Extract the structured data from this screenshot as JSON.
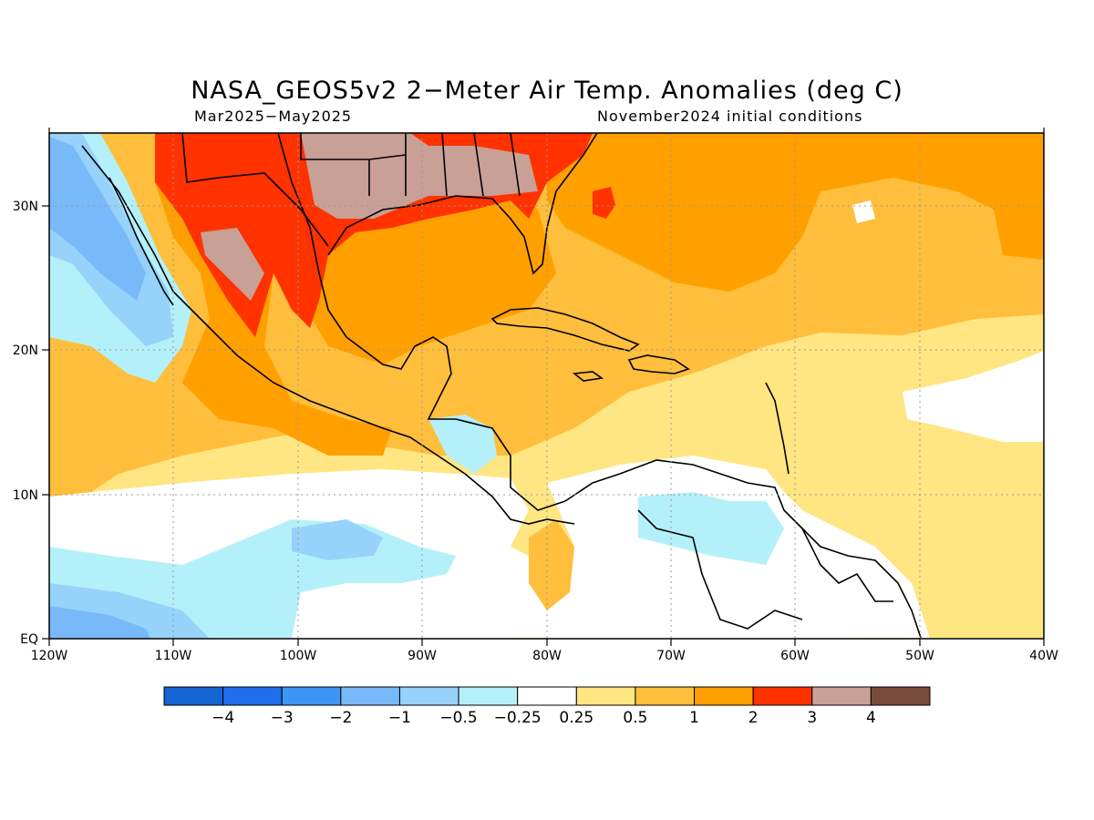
{
  "title": "NASA_GEOS5v2 2−Meter Air Temp. Anomalies (deg C)",
  "subtitle_left": "Mar2025−May2025",
  "subtitle_right": "November2024 initial conditions",
  "map": {
    "lon_range": [
      -120,
      -40
    ],
    "lat_range": [
      0,
      35
    ],
    "x_ticks": [
      "120W",
      "110W",
      "100W",
      "90W",
      "80W",
      "70W",
      "60W",
      "50W",
      "40W"
    ],
    "y_ticks": [
      "EQ",
      "10N",
      "20N",
      "30N"
    ],
    "gridlines": "dotted"
  },
  "colorbar": {
    "labels": [
      "−4",
      "−3",
      "−2",
      "−1",
      "−0.5",
      "−0.25",
      "0.25",
      "0.5",
      "1",
      "2",
      "3",
      "4"
    ],
    "colors": [
      "#1464d2",
      "#1e6eeb",
      "#3c96f5",
      "#78b9fa",
      "#96d2fa",
      "#b4f0fa",
      "#ffffff",
      "#ffe682",
      "#ffbe3c",
      "#ffa000",
      "#ff3200",
      "#c8a096",
      "#784b3c"
    ]
  },
  "legend_colors": {
    "land_outline": "#000000",
    "grid": "#999999"
  }
}
